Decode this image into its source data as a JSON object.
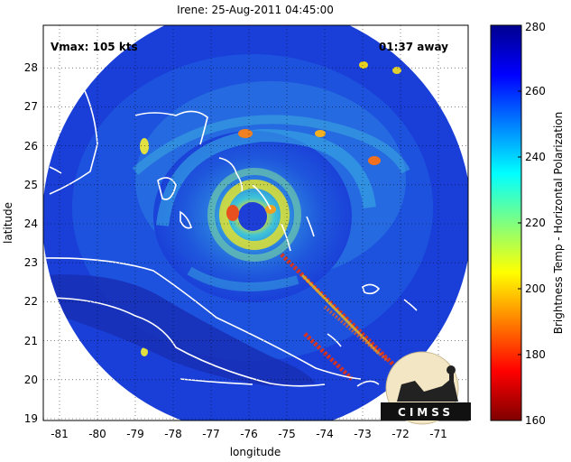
{
  "chart_data": {
    "type": "heatmap",
    "title": "Irene: 25-Aug-2011 04:45:00",
    "xlabel": "longitude",
    "ylabel": "latitude",
    "xlim": [
      -81.4,
      -70.3
    ],
    "ylim": [
      19,
      29
    ],
    "xticks": [
      "-81",
      "-80",
      "-79",
      "-78",
      "-77",
      "-76",
      "-75",
      "-74",
      "-73",
      "-72",
      "-71"
    ],
    "xtick_values": [
      -81,
      -80,
      -79,
      -78,
      -77,
      -76,
      -75,
      -74,
      -73,
      -72,
      -71
    ],
    "yticks": [
      "19",
      "20",
      "21",
      "22",
      "23",
      "24",
      "25",
      "26",
      "27",
      "28"
    ],
    "ytick_values": [
      19,
      20,
      21,
      22,
      23,
      24,
      25,
      26,
      27,
      28
    ],
    "grid": "dotted",
    "annotations": {
      "vmax": "Vmax: 105 kts",
      "eta": "01:37 away"
    },
    "storm_center": {
      "lon": -75.8,
      "lat": 24.0
    },
    "swath_radius_deg": 5.5,
    "colorbar": {
      "label": "Brightness Temp - Horizontal Polarization",
      "min": 160,
      "max": 280,
      "ticks": [
        "160",
        "180",
        "200",
        "220",
        "240",
        "260",
        "280"
      ],
      "tick_values": [
        160,
        180,
        200,
        220,
        240,
        260,
        280
      ],
      "colormap": "jet",
      "location": "right"
    },
    "logo": "CIMSS"
  },
  "colors": {
    "background_field": "#1a3fd8",
    "land_coast": "#ffffff",
    "rainband": "#34a8e6",
    "eyewall": "#e0e020",
    "hot_core": "#e22010"
  }
}
